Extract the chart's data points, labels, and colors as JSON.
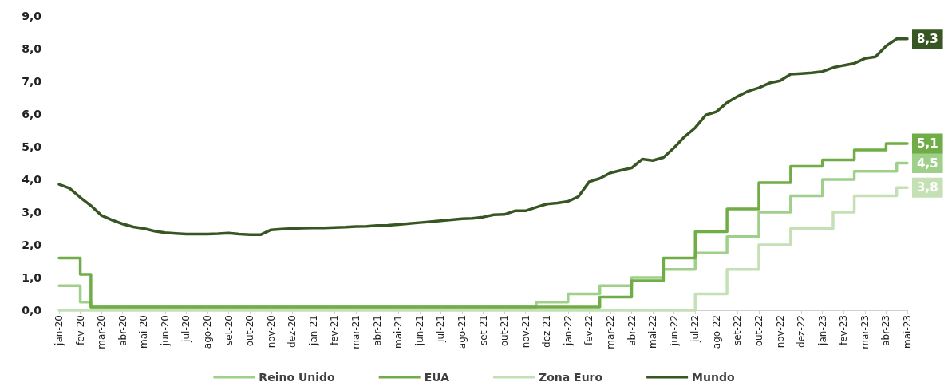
{
  "chart_data": {
    "type": "step",
    "categories": [
      "jan-20",
      null,
      "fev-20",
      null,
      "mar-20",
      null,
      "abr-20",
      null,
      "mai-20",
      null,
      "jun-20",
      null,
      "jul-20",
      null,
      "ago-20",
      null,
      "set-20",
      null,
      "out-20",
      null,
      "nov-20",
      null,
      "dez-20",
      null,
      "jan-21",
      null,
      "fev-21",
      null,
      "mar-21",
      null,
      "abr-21",
      null,
      "mai-21",
      null,
      "jun-21",
      null,
      "jul-21",
      null,
      "ago-21",
      null,
      "set-21",
      null,
      "out-21",
      null,
      "nov-21",
      null,
      "dez-21",
      null,
      "jan-22",
      null,
      "fev-22",
      null,
      "mar-22",
      null,
      "abr-22",
      null,
      "mai-22",
      null,
      "jun-22",
      null,
      "jul-22",
      null,
      "ago-22",
      null,
      "set-22",
      null,
      "out-22",
      null,
      "nov-22",
      null,
      "dez-22",
      null,
      "jan-23",
      null,
      "fev-23",
      null,
      "mar-23",
      null,
      "abr-23",
      null,
      "mai-23"
    ],
    "ylim": [
      0,
      9
    ],
    "yticks": [
      {
        "value": 0,
        "label": "0,0"
      },
      {
        "value": 1,
        "label": "1,0"
      },
      {
        "value": 2,
        "label": "2,0"
      },
      {
        "value": 3,
        "label": "3,0"
      },
      {
        "value": 4,
        "label": "4,0"
      },
      {
        "value": 5,
        "label": "5,0"
      },
      {
        "value": 6,
        "label": "6,0"
      },
      {
        "value": 7,
        "label": "7,0"
      },
      {
        "value": 8,
        "label": "8,0"
      },
      {
        "value": 9,
        "label": "9,0"
      }
    ],
    "legend": "bottom",
    "series": [
      {
        "name": "Reino Unido",
        "color": "#9fd08a",
        "values": [
          0.75,
          0.75,
          0.25,
          0.1,
          0.1,
          0.1,
          0.1,
          0.1,
          0.1,
          0.1,
          0.1,
          0.1,
          0.1,
          0.1,
          0.1,
          0.1,
          0.1,
          0.1,
          0.1,
          0.1,
          0.1,
          0.1,
          0.1,
          0.1,
          0.1,
          0.1,
          0.1,
          0.1,
          0.1,
          0.1,
          0.1,
          0.1,
          0.1,
          0.1,
          0.1,
          0.1,
          0.1,
          0.1,
          0.1,
          0.1,
          0.1,
          0.1,
          0.1,
          0.1,
          0.1,
          0.25,
          0.25,
          0.25,
          0.5,
          0.5,
          0.5,
          0.75,
          0.75,
          0.75,
          1.0,
          1.0,
          1.0,
          1.25,
          1.25,
          1.25,
          1.75,
          1.75,
          1.75,
          2.25,
          2.25,
          2.25,
          3.0,
          3.0,
          3.0,
          3.5,
          3.5,
          3.5,
          4.0,
          4.0,
          4.0,
          4.25,
          4.25,
          4.25,
          4.25,
          4.5,
          4.5
        ],
        "value_labels": [
          null,
          null,
          null,
          null,
          null,
          null,
          null,
          null,
          null,
          null,
          null,
          null,
          null,
          null,
          null,
          null,
          null,
          null,
          null,
          null,
          null,
          null,
          null,
          null,
          null,
          null,
          null,
          null,
          null,
          null,
          null,
          null,
          null,
          null,
          null,
          null,
          null,
          null,
          null,
          null,
          null,
          null,
          null,
          null,
          null,
          null,
          null,
          null,
          null,
          null,
          null,
          null,
          null,
          null,
          null,
          null,
          null,
          null,
          null,
          null,
          null,
          null,
          null,
          null,
          null,
          null,
          null,
          null,
          null,
          null,
          null,
          null,
          null,
          null,
          null,
          null,
          null,
          null,
          null,
          null,
          "4,5"
        ]
      },
      {
        "name": "EUA",
        "color": "#70ad47",
        "values": [
          1.6,
          1.6,
          1.1,
          0.1,
          0.1,
          0.1,
          0.1,
          0.1,
          0.1,
          0.1,
          0.1,
          0.1,
          0.1,
          0.1,
          0.1,
          0.1,
          0.1,
          0.1,
          0.1,
          0.1,
          0.1,
          0.1,
          0.1,
          0.1,
          0.1,
          0.1,
          0.1,
          0.1,
          0.1,
          0.1,
          0.1,
          0.1,
          0.1,
          0.1,
          0.1,
          0.1,
          0.1,
          0.1,
          0.1,
          0.1,
          0.1,
          0.1,
          0.1,
          0.1,
          0.1,
          0.1,
          0.1,
          0.1,
          0.1,
          0.1,
          0.1,
          0.4,
          0.4,
          0.4,
          0.9,
          0.9,
          0.9,
          1.6,
          1.6,
          1.6,
          2.4,
          2.4,
          2.4,
          3.1,
          3.1,
          3.1,
          3.9,
          3.9,
          3.9,
          4.4,
          4.4,
          4.4,
          4.6,
          4.6,
          4.6,
          4.9,
          4.9,
          4.9,
          5.1,
          5.1,
          5.1
        ],
        "value_labels": [
          null,
          null,
          null,
          null,
          null,
          null,
          null,
          null,
          null,
          null,
          null,
          null,
          null,
          null,
          null,
          null,
          null,
          null,
          null,
          null,
          null,
          null,
          null,
          null,
          null,
          null,
          null,
          null,
          null,
          null,
          null,
          null,
          null,
          null,
          null,
          null,
          null,
          null,
          null,
          null,
          null,
          null,
          null,
          null,
          null,
          null,
          null,
          null,
          null,
          null,
          null,
          null,
          null,
          null,
          null,
          null,
          null,
          null,
          null,
          null,
          null,
          null,
          null,
          null,
          null,
          null,
          null,
          null,
          null,
          null,
          null,
          null,
          null,
          null,
          null,
          null,
          null,
          null,
          null,
          null,
          "5,1"
        ]
      },
      {
        "name": "Zona Euro",
        "color": "#c5e0b4",
        "values": [
          0,
          0,
          0,
          0,
          0,
          0,
          0,
          0,
          0,
          0,
          0,
          0,
          0,
          0,
          0,
          0,
          0,
          0,
          0,
          0,
          0,
          0,
          0,
          0,
          0,
          0,
          0,
          0,
          0,
          0,
          0,
          0,
          0,
          0,
          0,
          0,
          0,
          0,
          0,
          0,
          0,
          0,
          0,
          0,
          0,
          0,
          0,
          0,
          0,
          0,
          0,
          0,
          0,
          0,
          0,
          0,
          0,
          0,
          0,
          0,
          0.5,
          0.5,
          0.5,
          1.25,
          1.25,
          1.25,
          2.0,
          2.0,
          2.0,
          2.5,
          2.5,
          2.5,
          2.5,
          3.0,
          3.0,
          3.5,
          3.5,
          3.5,
          3.5,
          3.75,
          3.75
        ],
        "value_labels": [
          null,
          null,
          null,
          null,
          null,
          null,
          null,
          null,
          null,
          null,
          null,
          null,
          null,
          null,
          null,
          null,
          null,
          null,
          null,
          null,
          null,
          null,
          null,
          null,
          null,
          null,
          null,
          null,
          null,
          null,
          null,
          null,
          null,
          null,
          null,
          null,
          null,
          null,
          null,
          null,
          null,
          null,
          null,
          null,
          null,
          null,
          null,
          null,
          null,
          null,
          null,
          null,
          null,
          null,
          null,
          null,
          null,
          null,
          null,
          null,
          null,
          null,
          null,
          null,
          null,
          null,
          null,
          null,
          null,
          null,
          null,
          null,
          null,
          null,
          null,
          null,
          null,
          null,
          null,
          null,
          "3,8"
        ]
      },
      {
        "name": "Mundo",
        "color": "#375623",
        "type": "line",
        "values": [
          3.85,
          3.73,
          3.45,
          3.2,
          2.9,
          2.76,
          2.64,
          2.55,
          2.5,
          2.42,
          2.37,
          2.35,
          2.33,
          2.33,
          2.33,
          2.34,
          2.36,
          2.33,
          2.31,
          2.31,
          2.46,
          2.48,
          2.5,
          2.51,
          2.52,
          2.52,
          2.53,
          2.54,
          2.56,
          2.57,
          2.59,
          2.6,
          2.62,
          2.65,
          2.68,
          2.71,
          2.74,
          2.77,
          2.8,
          2.81,
          2.85,
          2.92,
          2.93,
          3.04,
          3.04,
          3.15,
          3.25,
          3.28,
          3.33,
          3.48,
          3.93,
          4.03,
          4.2,
          4.28,
          4.35,
          4.62,
          4.58,
          4.67,
          4.97,
          5.31,
          5.58,
          5.97,
          6.07,
          6.35,
          6.54,
          6.7,
          6.8,
          6.95,
          7.02,
          7.22,
          7.24,
          7.26,
          7.3,
          7.42,
          7.49,
          7.55,
          7.7,
          7.75,
          8.08,
          8.3,
          8.3
        ],
        "value_labels": [
          null,
          null,
          null,
          null,
          null,
          null,
          null,
          null,
          null,
          null,
          null,
          null,
          null,
          null,
          null,
          null,
          null,
          null,
          null,
          null,
          null,
          null,
          null,
          null,
          null,
          null,
          null,
          null,
          null,
          null,
          null,
          null,
          null,
          null,
          null,
          null,
          null,
          null,
          null,
          null,
          null,
          null,
          null,
          null,
          null,
          null,
          null,
          null,
          null,
          null,
          null,
          null,
          null,
          null,
          null,
          null,
          null,
          null,
          null,
          null,
          null,
          null,
          null,
          null,
          null,
          null,
          null,
          null,
          null,
          null,
          null,
          null,
          null,
          null,
          null,
          null,
          null,
          null,
          null,
          null,
          "8,3"
        ]
      }
    ]
  }
}
